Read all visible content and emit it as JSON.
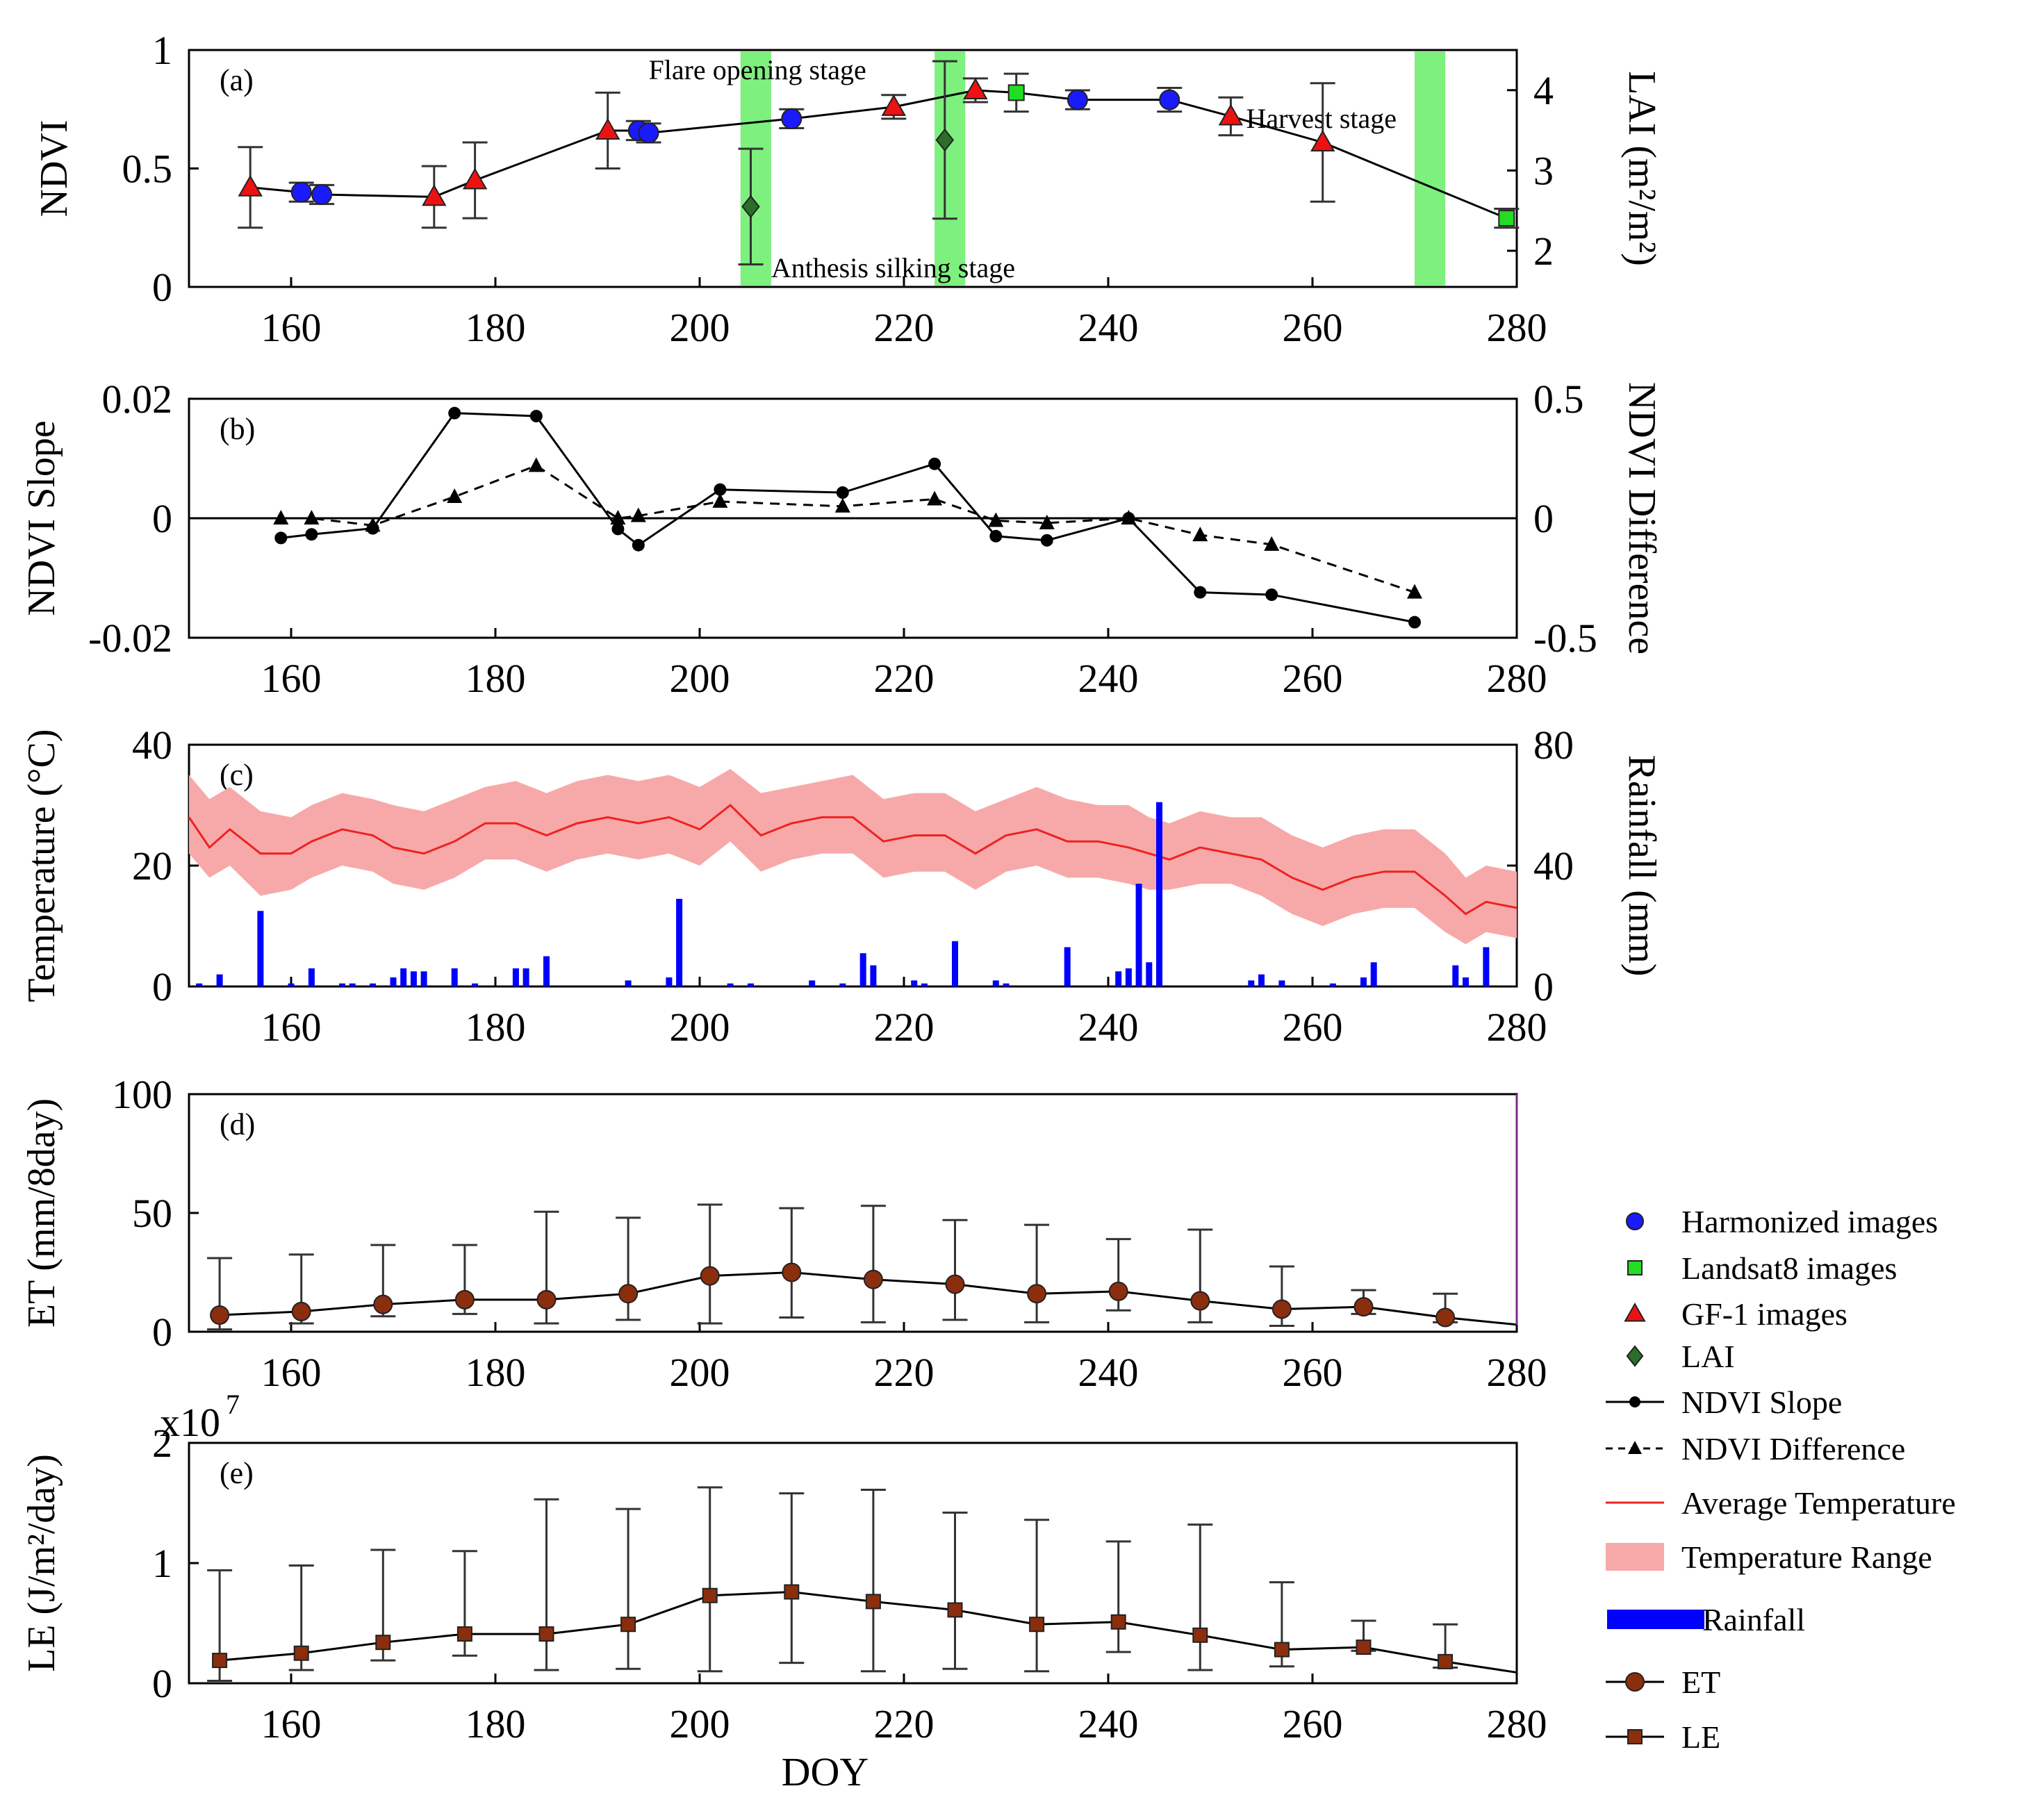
{
  "chart_data": [
    {
      "panel": "(a)",
      "type": "scatter",
      "xlim": [
        150,
        280
      ],
      "xticks": [
        160,
        180,
        200,
        220,
        240,
        260,
        280
      ],
      "ylabel": "NDVI",
      "ylim": [
        0,
        1
      ],
      "yticks": [
        "0",
        "0.5",
        "1"
      ],
      "y2label": "LAI (m²/m²)",
      "y2ticks": [
        2,
        3,
        4
      ],
      "y2lim": [
        1.55,
        4.5
      ],
      "series": [
        {
          "name": "NDVI curve",
          "x": [
            156,
            161,
            163,
            174,
            178,
            191,
            194,
            195,
            209,
            219,
            227,
            231,
            237,
            246,
            252,
            261,
            279
          ],
          "y": [
            0.42,
            0.4,
            0.39,
            0.38,
            0.45,
            0.66,
            0.66,
            0.65,
            0.71,
            0.76,
            0.83,
            0.82,
            0.79,
            0.79,
            0.72,
            0.61,
            0.29
          ]
        },
        {
          "name": "Harmonized images",
          "x": [
            161,
            163,
            194,
            195,
            209,
            237,
            246
          ],
          "y": [
            0.4,
            0.39,
            0.66,
            0.65,
            0.71,
            0.79,
            0.79
          ],
          "err": [
            0.04,
            0.04,
            0.04,
            0.04,
            0.04,
            0.04,
            0.05
          ]
        },
        {
          "name": "Landsat8 images",
          "x": [
            231,
            279
          ],
          "y": [
            0.82,
            0.29
          ],
          "err": [
            0.08,
            0.04
          ]
        },
        {
          "name": "GF-1 images",
          "x": [
            156,
            174,
            178,
            191,
            219,
            227,
            252,
            261
          ],
          "y": [
            0.42,
            0.38,
            0.45,
            0.66,
            0.76,
            0.83,
            0.72,
            0.61
          ],
          "err": [
            0.17,
            0.13,
            0.16,
            0.16,
            0.05,
            0.05,
            0.08,
            0.25
          ]
        },
        {
          "name": "LAI",
          "x": [
            205,
            224
          ],
          "y2": [
            2.55,
            3.38
          ],
          "err2": [
            0.72,
            0.98
          ]
        }
      ],
      "stages": [
        {
          "label": "Flare opening stage",
          "x": [
            204,
            207
          ]
        },
        {
          "label": "Anthesis silking stage",
          "x": [
            223,
            226
          ]
        },
        {
          "label": "Harvest stage",
          "x": [
            270,
            273
          ]
        }
      ]
    },
    {
      "panel": "(b)",
      "type": "line",
      "xlim": [
        150,
        280
      ],
      "xticks": [
        160,
        180,
        200,
        220,
        240,
        260,
        280
      ],
      "ylabel": "NDVI Slope",
      "ylim": [
        -0.02,
        0.02
      ],
      "yticks": [
        "-0.02",
        "0",
        "0.02"
      ],
      "y2label": "NDVI Difference",
      "y2ticks": [
        "-0.5",
        "0",
        "0.5"
      ],
      "series": [
        {
          "name": "NDVI Slope",
          "x": [
            159,
            162,
            168,
            176,
            184,
            192,
            194,
            202,
            214,
            223,
            229,
            234,
            242,
            249,
            256,
            270
          ],
          "y": [
            -0.0033,
            -0.0027,
            -0.0017,
            0.0176,
            0.0171,
            -0.0018,
            -0.0045,
            0.0048,
            0.0043,
            0.0091,
            -0.003,
            -0.0037,
            0.0,
            -0.0124,
            -0.0128,
            -0.0174
          ]
        },
        {
          "name": "NDVI Difference",
          "x": [
            159,
            162,
            168,
            176,
            184,
            192,
            194,
            202,
            214,
            223,
            229,
            234,
            242,
            249,
            256,
            270
          ],
          "y2": [
            0.0,
            0.0,
            -0.03,
            0.09,
            0.22,
            0.0,
            0.01,
            0.07,
            0.05,
            0.08,
            -0.01,
            -0.02,
            0.0,
            -0.07,
            -0.11,
            -0.31
          ]
        }
      ]
    },
    {
      "panel": "(c)",
      "type": "area",
      "xlim": [
        150,
        280
      ],
      "xticks": [
        160,
        180,
        200,
        220,
        240,
        260,
        280
      ],
      "ylabel": "Temperature (°C)",
      "ylim": [
        0,
        40
      ],
      "yticks": [
        "0",
        "20",
        "40"
      ],
      "y2label": "Rainfall (mm)",
      "y2ticks": [
        "0",
        "40",
        "80"
      ],
      "series": [
        {
          "name": "Average Temperature",
          "x": [
            150,
            152,
            154,
            157,
            160,
            162,
            165,
            168,
            170,
            173,
            176,
            179,
            182,
            185,
            188,
            191,
            194,
            197,
            200,
            203,
            206,
            209,
            212,
            215,
            218,
            221,
            224,
            227,
            230,
            233,
            236,
            239,
            242,
            244,
            246,
            249,
            252,
            255,
            258,
            261,
            264,
            267,
            270,
            273,
            275,
            277,
            280
          ],
          "y": [
            28,
            23,
            26,
            22,
            22,
            24,
            26,
            25,
            23,
            22,
            24,
            27,
            27,
            25,
            27,
            28,
            27,
            28,
            26,
            30,
            25,
            27,
            28,
            28,
            24,
            25,
            25,
            22,
            25,
            26,
            24,
            24,
            23,
            22,
            21,
            23,
            22,
            21,
            18,
            16,
            18,
            19,
            19,
            15,
            12,
            14,
            13
          ]
        },
        {
          "name": "Temperature Range",
          "x": [
            150,
            152,
            154,
            157,
            160,
            162,
            165,
            168,
            170,
            173,
            176,
            179,
            182,
            185,
            188,
            191,
            194,
            197,
            200,
            203,
            206,
            209,
            212,
            215,
            218,
            221,
            224,
            227,
            230,
            233,
            236,
            239,
            242,
            244,
            246,
            249,
            252,
            255,
            258,
            261,
            264,
            267,
            270,
            273,
            275,
            277,
            280
          ],
          "ymin": [
            22,
            18,
            20,
            15,
            16,
            18,
            20,
            19,
            17,
            16,
            18,
            21,
            21,
            19,
            21,
            22,
            21,
            22,
            20,
            24,
            19,
            21,
            22,
            22,
            18,
            19,
            19,
            16,
            19,
            20,
            18,
            18,
            17,
            16,
            16,
            17,
            17,
            15,
            12,
            10,
            12,
            13,
            13,
            9,
            7,
            9,
            8
          ],
          "ymax": [
            35,
            31,
            33,
            29,
            28,
            30,
            32,
            31,
            30,
            29,
            31,
            33,
            34,
            32,
            34,
            35,
            34,
            35,
            33,
            36,
            32,
            33,
            34,
            35,
            31,
            32,
            32,
            29,
            31,
            33,
            31,
            30,
            30,
            28,
            27,
            29,
            28,
            28,
            25,
            23,
            25,
            26,
            26,
            22,
            18,
            20,
            19
          ]
        },
        {
          "name": "Rainfall",
          "x": [
            151,
            153,
            157,
            160,
            162,
            165,
            166,
            168,
            170,
            171,
            172,
            173,
            176,
            178,
            182,
            183,
            185,
            193,
            197,
            198,
            203,
            205,
            211,
            214,
            216,
            217,
            221,
            222,
            225,
            229,
            230,
            236,
            241,
            242,
            243,
            244,
            245,
            254,
            255,
            257,
            262,
            265,
            266,
            274,
            275,
            277
          ],
          "y2": [
            1,
            4,
            25,
            1,
            6,
            1,
            1,
            1,
            3,
            6,
            5,
            5,
            6,
            1,
            6,
            6,
            10,
            2,
            3,
            29,
            1,
            1,
            2,
            1,
            11,
            7,
            2,
            1,
            15,
            2,
            1,
            13,
            5,
            6,
            34,
            8,
            61,
            2,
            4,
            2,
            1,
            3,
            8,
            7,
            3,
            13
          ]
        }
      ]
    },
    {
      "panel": "(d)",
      "type": "line",
      "xlim": [
        150,
        280
      ],
      "xticks": [
        160,
        180,
        200,
        220,
        240,
        260,
        280
      ],
      "ylabel": "ET (mm/8day)",
      "ylim": [
        0,
        100
      ],
      "yticks": [
        "0",
        "50",
        "100"
      ],
      "series": [
        {
          "name": "ET",
          "x": [
            153,
            161,
            169,
            177,
            185,
            193,
            201,
            209,
            217,
            225,
            233,
            241,
            249,
            257,
            265,
            273,
            280
          ],
          "y": [
            7,
            8.5,
            11.5,
            13.5,
            13.5,
            16,
            23.5,
            25,
            22,
            20,
            16,
            17,
            13,
            9.5,
            10.5,
            6,
            3
          ],
          "err_low": [
            6,
            5,
            5,
            6,
            10,
            11,
            20,
            19,
            18,
            15,
            12,
            8,
            9,
            7,
            3,
            2,
            0
          ],
          "err_high": [
            24,
            24,
            25,
            23,
            37,
            32,
            30,
            27,
            31,
            27,
            29,
            22,
            30,
            18,
            7,
            10,
            0
          ]
        }
      ]
    },
    {
      "panel": "(e)",
      "type": "line",
      "xlim": [
        150,
        280
      ],
      "xticks": [
        160,
        180,
        200,
        220,
        240,
        260,
        280
      ],
      "ylabel": "LE (J/m²/day)",
      "ylim": [
        0,
        2
      ],
      "yticks": [
        "0",
        "1",
        "2"
      ],
      "yexponent": "x10",
      "yexponent_power": "7",
      "xlabel": "DOY",
      "series": [
        {
          "name": "LE",
          "x": [
            153,
            161,
            169,
            177,
            185,
            193,
            201,
            209,
            217,
            225,
            233,
            241,
            249,
            257,
            265,
            273,
            280
          ],
          "y": [
            0.19,
            0.25,
            0.34,
            0.41,
            0.41,
            0.49,
            0.73,
            0.76,
            0.68,
            0.61,
            0.49,
            0.51,
            0.4,
            0.28,
            0.3,
            0.18,
            0.09
          ],
          "err_low": [
            0.17,
            0.14,
            0.15,
            0.18,
            0.3,
            0.37,
            0.63,
            0.59,
            0.58,
            0.49,
            0.39,
            0.25,
            0.29,
            0.14,
            0.03,
            0.05,
            0
          ],
          "err_high": [
            0.75,
            0.73,
            0.77,
            0.69,
            1.12,
            0.96,
            0.9,
            0.82,
            0.93,
            0.81,
            0.87,
            0.67,
            0.92,
            0.56,
            0.22,
            0.31,
            0
          ]
        }
      ]
    }
  ],
  "legend": [
    {
      "label": "Harmonized images",
      "marker": "circle",
      "color": "#1a1aff"
    },
    {
      "label": "Landsat8 images",
      "marker": "square",
      "color": "#22dd22"
    },
    {
      "label": "GF-1 images",
      "marker": "triangle",
      "color": "#ee1111"
    },
    {
      "label": "LAI",
      "marker": "diamond",
      "color": "#2a6e2a"
    },
    {
      "label": "NDVI Slope",
      "marker": "line-dot",
      "color": "#000000"
    },
    {
      "label": "NDVI Difference",
      "marker": "dashed-triangle",
      "color": "#000000"
    },
    {
      "label": "Average Temperature",
      "marker": "line",
      "color": "#ee2222"
    },
    {
      "label": "Temperature Range",
      "marker": "band",
      "color": "#f7a9a9"
    },
    {
      "label": "Rainfall",
      "marker": "bar",
      "color": "#0000ff"
    },
    {
      "label": "ET",
      "marker": "line-circle",
      "color": "#8b2e0e"
    },
    {
      "label": "LE",
      "marker": "line-square",
      "color": "#8b2e0e"
    }
  ],
  "colors": {
    "stage_band": "#7ef07e",
    "harmonized": "#1a1aff",
    "landsat": "#22dd22",
    "gf1": "#ee1111",
    "lai": "#2a6e2a",
    "temp_line": "#ee2222",
    "temp_band": "#f7a9a9",
    "rain": "#0000ff",
    "et": "#8b2e0e"
  }
}
